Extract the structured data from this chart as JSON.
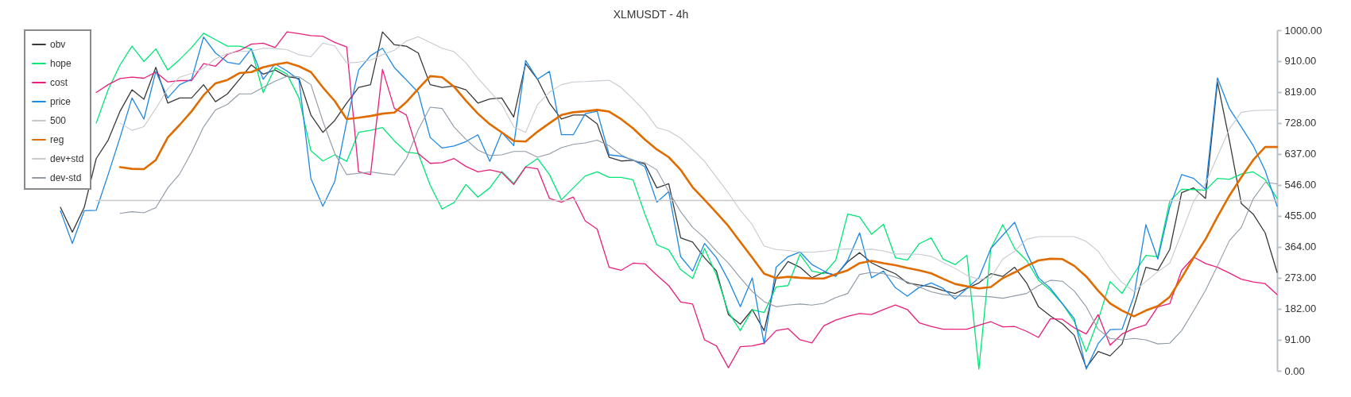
{
  "chart_data": {
    "type": "line",
    "title": "XLMUSDT - 4h",
    "categories": [
      null,
      null,
      null,
      null,
      null,
      null,
      null,
      null,
      null,
      null,
      null,
      null,
      null,
      null,
      null,
      null,
      null,
      null,
      null,
      null,
      null,
      null,
      null,
      null,
      null,
      null,
      null,
      null,
      null,
      null,
      null,
      null,
      null,
      null,
      null,
      null,
      null,
      null,
      null,
      null,
      null,
      null,
      null,
      null,
      null,
      null,
      null,
      null,
      null,
      null,
      null,
      null,
      null,
      null,
      null,
      null,
      null,
      null,
      null,
      null,
      null,
      null,
      null,
      null,
      null,
      null,
      null,
      null,
      null,
      null,
      null,
      null,
      null,
      null,
      null,
      null,
      null,
      null,
      null,
      null,
      null,
      null,
      null,
      null,
      null,
      null,
      null,
      null,
      null,
      null,
      null,
      null,
      null,
      null,
      null,
      null,
      null,
      null,
      null,
      null,
      null,
      null,
      null,
      null,
      null,
      null
    ],
    "series": [
      {
        "name": "obv",
        "color": "#3a3a3a",
        "values": [
          null,
          null,
          null,
          480,
          407,
          480,
          623,
          677,
          762,
          825,
          797,
          891,
          786,
          801,
          801,
          840,
          790,
          813,
          855,
          898,
          871,
          883,
          864,
          858,
          751,
          700,
          735,
          786,
          832,
          840,
          995,
          957,
          953,
          933,
          840,
          832,
          836,
          825,
          786,
          798,
          801,
          745,
          902,
          856,
          786,
          739,
          751,
          751,
          725,
          627,
          616,
          618,
          607,
          537,
          549,
          390,
          378,
          332,
          293,
          165,
          137,
          180,
          118,
          273,
          321,
          304,
          273,
          289,
          281,
          320,
          347,
          317,
          300,
          285,
          258,
          252,
          247,
          236,
          227,
          242,
          258,
          285,
          277,
          304,
          258,
          188,
          161,
          138,
          104,
          9,
          57,
          44,
          79,
          188,
          304,
          295,
          356,
          523,
          537,
          506,
          848,
          677,
          491,
          460,
          405,
          289
        ]
      },
      {
        "name": "hope",
        "color": "#00e676",
        "values": [
          null,
          null,
          null,
          null,
          null,
          null,
          727,
          825,
          898,
          953,
          908,
          945,
          883,
          914,
          949,
          991,
          972,
          953,
          953,
          945,
          817,
          890,
          871,
          801,
          646,
          616,
          634,
          615,
          700,
          706,
          714,
          675,
          642,
          638,
          545,
          475,
          494,
          547,
          510,
          537,
          585,
          550,
          599,
          623,
          576,
          502,
          537,
          572,
          584,
          568,
          568,
          561,
          460,
          370,
          355,
          297,
          271,
          359,
          281,
          172,
          118,
          179,
          171,
          246,
          250,
          342,
          293,
          285,
          325,
          460,
          452,
          401,
          430,
          332,
          325,
          373,
          390,
          328,
          312,
          339,
          5,
          359,
          429,
          359,
          324,
          266,
          236,
          197,
          145,
          56,
          149,
          262,
          227,
          285,
          339,
          335,
          498,
          533,
          532,
          530,
          565,
          562,
          578,
          584,
          561,
          506
        ]
      },
      {
        "name": "cost",
        "color": "#e91e7b",
        "values": [
          null,
          null,
          null,
          null,
          null,
          null,
          817,
          840,
          858,
          862,
          859,
          877,
          848,
          852,
          852,
          902,
          894,
          929,
          940,
          959,
          962,
          949,
          995,
          990,
          984,
          982,
          964,
          951,
          584,
          576,
          885,
          770,
          751,
          638,
          609,
          611,
          623,
          600,
          584,
          590,
          582,
          547,
          598,
          593,
          506,
          495,
          510,
          440,
          416,
          304,
          295,
          316,
          314,
          281,
          250,
          202,
          196,
          91,
          73,
          9,
          71,
          73,
          81,
          118,
          124,
          91,
          82,
          132,
          149,
          160,
          168,
          165,
          180,
          193,
          180,
          141,
          130,
          122,
          122,
          122,
          134,
          144,
          129,
          130,
          116,
          98,
          153,
          151,
          126,
          108,
          165,
          75,
          108,
          124,
          135,
          188,
          197,
          295,
          334,
          315,
          304,
          287,
          269,
          261,
          256,
          224
        ]
      },
      {
        "name": "price",
        "color": "#1e88e5",
        "values": [
          null,
          null,
          null,
          470,
          374,
          470,
          471,
          576,
          685,
          801,
          739,
          879,
          801,
          840,
          856,
          980,
          933,
          906,
          900,
          945,
          856,
          901,
          880,
          854,
          564,
          483,
          556,
          731,
          883,
          925,
          947,
          890,
          854,
          817,
          685,
          654,
          660,
          673,
          693,
          615,
          700,
          661,
          911,
          856,
          879,
          693,
          693,
          755,
          762,
          634,
          630,
          619,
          599,
          495,
          526,
          335,
          293,
          374,
          332,
          266,
          188,
          273,
          79,
          304,
          335,
          349,
          312,
          293,
          277,
          324,
          405,
          273,
          293,
          244,
          219,
          245,
          258,
          242,
          211,
          242,
          273,
          359,
          398,
          436,
          347,
          273,
          242,
          197,
          153,
          5,
          80,
          121,
          122,
          219,
          429,
          328,
          481,
          576,
          565,
          533,
          860,
          770,
          716,
          661,
          588,
          483
        ]
      },
      {
        "name": "500",
        "color": "#c8c8c8",
        "values": [
          null,
          null,
          null,
          null,
          null,
          null,
          500,
          500,
          500,
          500,
          500,
          500,
          500,
          500,
          500,
          500,
          500,
          500,
          500,
          500,
          500,
          500,
          500,
          500,
          500,
          500,
          500,
          500,
          500,
          500,
          500,
          500,
          500,
          500,
          500,
          500,
          500,
          500,
          500,
          500,
          500,
          500,
          500,
          500,
          500,
          500,
          500,
          500,
          500,
          500,
          500,
          500,
          500,
          500,
          500,
          500,
          500,
          500,
          500,
          500,
          500,
          500,
          500,
          500,
          500,
          500,
          500,
          500,
          500,
          500,
          500,
          500,
          500,
          500,
          500,
          500,
          500,
          500,
          500,
          500,
          500,
          500,
          500,
          500,
          500,
          500,
          500,
          500,
          500,
          500,
          500,
          500,
          500,
          500,
          500,
          500,
          500,
          500,
          500,
          500,
          500,
          500,
          500,
          500,
          500,
          500
        ]
      },
      {
        "name": "reg",
        "color": "#e06c00",
        "values": [
          null,
          null,
          null,
          null,
          null,
          null,
          null,
          null,
          598,
          593,
          592,
          619,
          685,
          722,
          762,
          809,
          844,
          854,
          874,
          877,
          891,
          899,
          905,
          894,
          877,
          832,
          792,
          739,
          743,
          748,
          755,
          758,
          789,
          828,
          865,
          862,
          834,
          793,
          755,
          724,
          700,
          675,
          673,
          702,
          727,
          751,
          759,
          762,
          766,
          761,
          739,
          712,
          679,
          650,
          627,
          590,
          539,
          502,
          464,
          425,
          378,
          332,
          285,
          272,
          276,
          273,
          271,
          271,
          284,
          295,
          316,
          323,
          316,
          310,
          302,
          295,
          286,
          270,
          255,
          248,
          242,
          246,
          272,
          289,
          308,
          324,
          329,
          328,
          308,
          277,
          235,
          198,
          177,
          160,
          177,
          190,
          217,
          273,
          332,
          386,
          452,
          514,
          568,
          619,
          657,
          657
        ]
      },
      {
        "name": "dev+std",
        "color": "#c5cbd1",
        "values": [
          null,
          null,
          null,
          null,
          null,
          null,
          null,
          null,
          727,
          706,
          717,
          770,
          828,
          862,
          873,
          888,
          916,
          931,
          937,
          939,
          947,
          946,
          943,
          928,
          922,
          962,
          954,
          904,
          906,
          912,
          928,
          941,
          968,
          981,
          964,
          947,
          937,
          904,
          859,
          820,
          782,
          716,
          700,
          782,
          818,
          840,
          848,
          849,
          851,
          853,
          832,
          798,
          762,
          714,
          704,
          683,
          650,
          615,
          568,
          522,
          471,
          429,
          366,
          356,
          353,
          349,
          348,
          351,
          356,
          358,
          355,
          357,
          352,
          343,
          343,
          342,
          336,
          318,
          301,
          280,
          268,
          273,
          328,
          351,
          386,
          394,
          394,
          394,
          394,
          380,
          351,
          300,
          259,
          233,
          262,
          291,
          316,
          405,
          497,
          550,
          630,
          710,
          759,
          764,
          765,
          765
        ]
      },
      {
        "name": "dev-std",
        "color": "#8f9aa6",
        "values": [
          null,
          null,
          null,
          null,
          null,
          null,
          null,
          null,
          462,
          467,
          464,
          479,
          537,
          578,
          642,
          716,
          766,
          782,
          813,
          813,
          832,
          850,
          865,
          863,
          840,
          733,
          638,
          576,
          580,
          584,
          579,
          575,
          623,
          708,
          774,
          770,
          716,
          679,
          648,
          632,
          634,
          644,
          644,
          627,
          637,
          655,
          665,
          669,
          677,
          661,
          634,
          617,
          611,
          590,
          526,
          467,
          421,
          390,
          351,
          316,
          273,
          233,
          203,
          188,
          193,
          196,
          193,
          198,
          215,
          227,
          283,
          289,
          285,
          275,
          261,
          246,
          232,
          224,
          220,
          219,
          219,
          217,
          213,
          220,
          227,
          250,
          266,
          263,
          234,
          188,
          122,
          95,
          91,
          95,
          91,
          79,
          81,
          118,
          176,
          236,
          308,
          382,
          421,
          505,
          553,
          549
        ]
      }
    ],
    "ylim": [
      0,
      1000
    ],
    "yticks": [
      {
        "value": 0,
        "label": "0.00"
      },
      {
        "value": 91,
        "label": "91.00"
      },
      {
        "value": 182,
        "label": "182.00"
      },
      {
        "value": 273,
        "label": "273.00"
      },
      {
        "value": 364,
        "label": "364.00"
      },
      {
        "value": 455,
        "label": "455.00"
      },
      {
        "value": 546,
        "label": "546.00"
      },
      {
        "value": 637,
        "label": "637.00"
      },
      {
        "value": 728,
        "label": "728.00"
      },
      {
        "value": 819,
        "label": "819.00"
      },
      {
        "value": 910,
        "label": "910.00"
      },
      {
        "value": 1000,
        "label": "1000.00"
      }
    ],
    "grid": false,
    "legend": "top left",
    "tick_labels": "y"
  }
}
